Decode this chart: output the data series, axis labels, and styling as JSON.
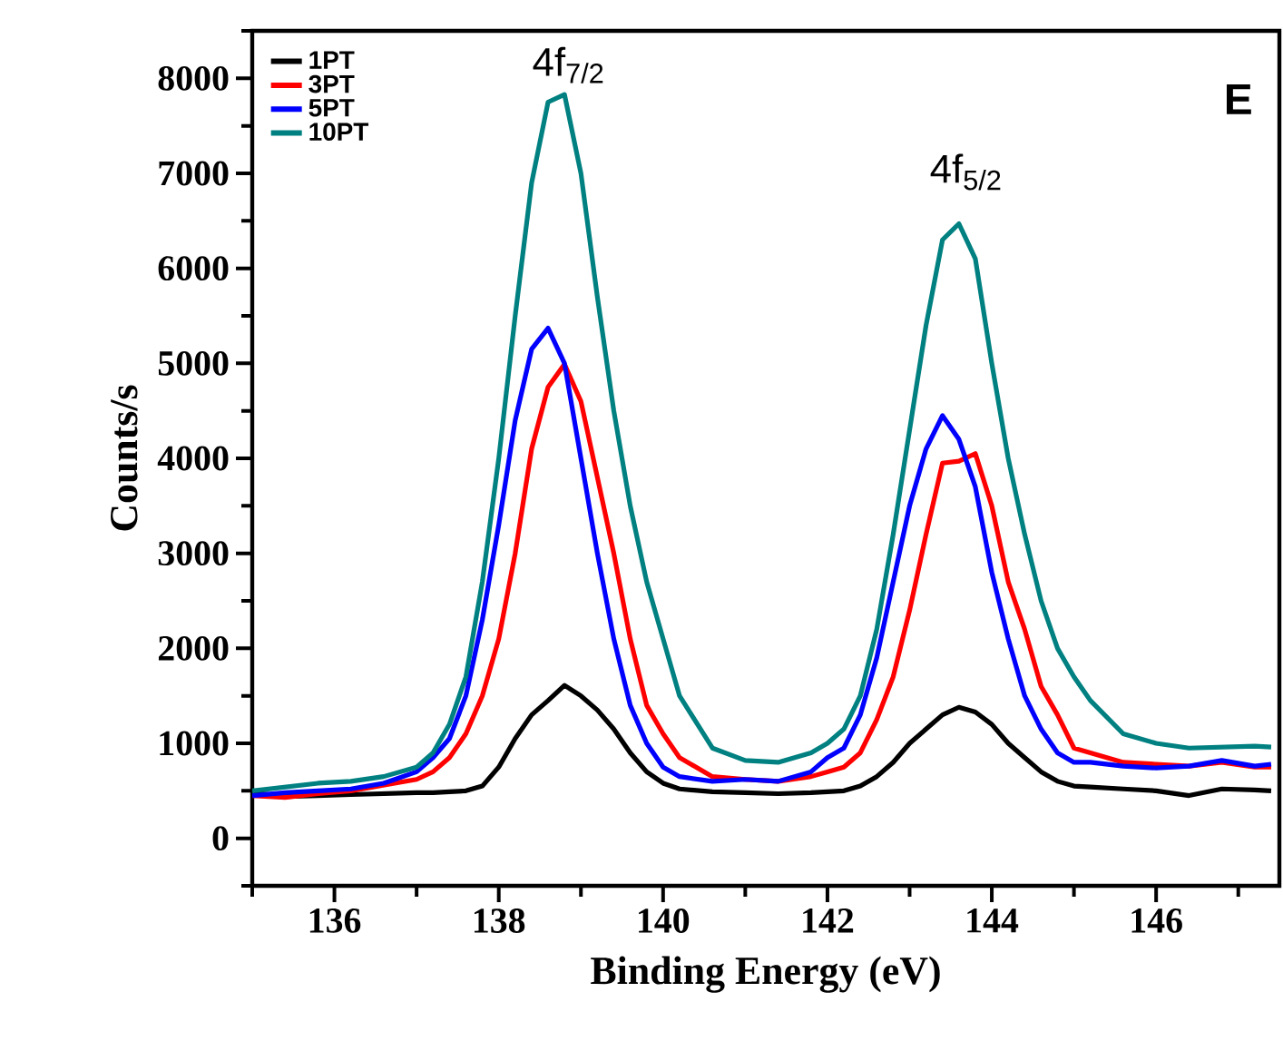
{
  "chart_data": {
    "type": "line",
    "xlabel": "Binding Energy (eV)",
    "ylabel": "Counts/s",
    "x": [
      135,
      135.4,
      135.8,
      136.2,
      136.6,
      137.0,
      137.2,
      137.4,
      137.6,
      137.8,
      138.0,
      138.2,
      138.4,
      138.6,
      138.8,
      139.0,
      139.2,
      139.4,
      139.6,
      139.8,
      140.0,
      140.2,
      140.6,
      141.0,
      141.4,
      141.8,
      142.0,
      142.2,
      142.4,
      142.6,
      142.8,
      143.0,
      143.2,
      143.4,
      143.6,
      143.8,
      144.0,
      144.2,
      144.4,
      144.6,
      144.8,
      145.0,
      145.2,
      145.6,
      146.0,
      146.4,
      146.8,
      147.2,
      147.4
    ],
    "series": [
      {
        "name": "1PT",
        "color": "#000000",
        "values": [
          480,
          440,
          450,
          460,
          470,
          480,
          480,
          490,
          500,
          550,
          750,
          1050,
          1300,
          1450,
          1610,
          1500,
          1350,
          1150,
          900,
          700,
          580,
          520,
          490,
          480,
          470,
          480,
          490,
          500,
          550,
          650,
          800,
          1000,
          1150,
          1300,
          1380,
          1330,
          1200,
          1000,
          850,
          700,
          600,
          550,
          540,
          520,
          500,
          450,
          520,
          510,
          500
        ]
      },
      {
        "name": "3PT",
        "color": "#ff0000",
        "values": [
          450,
          430,
          470,
          500,
          560,
          620,
          700,
          850,
          1100,
          1500,
          2100,
          3000,
          4100,
          4750,
          4990,
          4600,
          3800,
          3000,
          2100,
          1400,
          1100,
          850,
          650,
          620,
          600,
          650,
          700,
          750,
          900,
          1250,
          1700,
          2400,
          3200,
          3950,
          3970,
          4050,
          3500,
          2700,
          2200,
          1600,
          1300,
          950,
          900,
          800,
          780,
          760,
          800,
          750,
          750
        ]
      },
      {
        "name": "5PT",
        "color": "#0000ff",
        "values": [
          450,
          480,
          500,
          520,
          580,
          700,
          850,
          1050,
          1500,
          2300,
          3300,
          4400,
          5150,
          5370,
          5000,
          4000,
          3000,
          2100,
          1400,
          1000,
          750,
          650,
          600,
          620,
          600,
          700,
          850,
          950,
          1300,
          1900,
          2700,
          3500,
          4100,
          4450,
          4200,
          3700,
          2800,
          2100,
          1500,
          1150,
          900,
          800,
          800,
          760,
          740,
          760,
          820,
          760,
          780
        ]
      },
      {
        "name": "10PT",
        "color": "#008080",
        "values": [
          500,
          540,
          580,
          600,
          650,
          750,
          900,
          1200,
          1700,
          2700,
          4000,
          5500,
          6900,
          7750,
          7830,
          7000,
          5700,
          4500,
          3500,
          2700,
          2100,
          1500,
          950,
          820,
          800,
          900,
          1000,
          1150,
          1500,
          2200,
          3200,
          4300,
          5400,
          6300,
          6470,
          6100,
          5000,
          4000,
          3200,
          2500,
          2000,
          1700,
          1450,
          1100,
          1000,
          950,
          960,
          970,
          960
        ]
      }
    ],
    "xlim": [
      135,
      147.5
    ],
    "ylim": [
      -500,
      8500
    ],
    "xticks": [
      {
        "value": 135,
        "label": null
      },
      136,
      {
        "value": 137,
        "label": null
      },
      138,
      {
        "value": 139,
        "label": null
      },
      140,
      {
        "value": 141,
        "label": null
      },
      142,
      {
        "value": 143,
        "label": null
      },
      144,
      {
        "value": 145,
        "label": null
      },
      146,
      {
        "value": 147,
        "label": null
      }
    ],
    "yticks": [
      {
        "value": -500,
        "label": null
      },
      0,
      {
        "value": 500,
        "label": null
      },
      1000,
      {
        "value": 1500,
        "label": null
      },
      2000,
      {
        "value": 2500,
        "label": null
      },
      3000,
      {
        "value": 3500,
        "label": null
      },
      4000,
      {
        "value": 4500,
        "label": null
      },
      5000,
      {
        "value": 5500,
        "label": null
      },
      6000,
      {
        "value": 6500,
        "label": null
      },
      7000,
      {
        "value": 7500,
        "label": null
      },
      8000,
      {
        "value": 8500,
        "label": null
      }
    ],
    "annotations": [
      "4f$_{7/2}$",
      "4f$_{5/2}$",
      "E"
    ],
    "legend": "top left",
    "grid": false,
    "marker": "none",
    "line_style": "solid"
  }
}
